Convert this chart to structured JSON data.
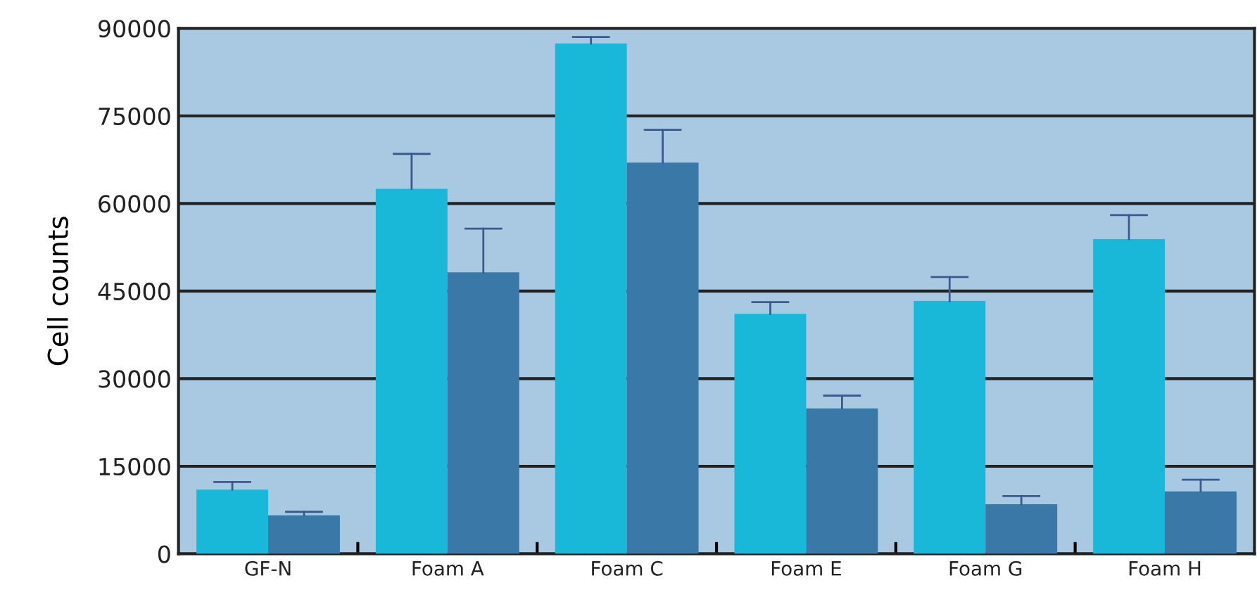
{
  "chart_data": {
    "type": "bar",
    "ylabel": "Cell counts",
    "categories": [
      "GF-N",
      "Foam A",
      "Foam C",
      "Foam E",
      "Foam G",
      "Foam H"
    ],
    "series": [
      {
        "color": "#1ab8d8",
        "values": [
          11000,
          62500,
          87400,
          41100,
          43300,
          53900
        ],
        "errors": [
          [
            11000,
            12300
          ],
          [
            62500,
            68500
          ],
          [
            87400,
            88500
          ],
          [
            41100,
            43100
          ],
          [
            43300,
            47400
          ],
          [
            53900,
            58000
          ]
        ]
      },
      {
        "color": "#3a78a8",
        "values": [
          6600,
          48200,
          67000,
          24900,
          8500,
          10700
        ],
        "errors": [
          [
            6600,
            7200
          ],
          [
            48200,
            55700
          ],
          [
            67000,
            72600
          ],
          [
            24900,
            27100
          ],
          [
            8500,
            9900
          ],
          [
            10700,
            12700
          ]
        ]
      }
    ],
    "ylim": [
      0,
      90000
    ],
    "yticks": [
      0,
      15000,
      30000,
      45000,
      60000,
      75000,
      90000
    ],
    "grid": "y",
    "legend": false
  }
}
